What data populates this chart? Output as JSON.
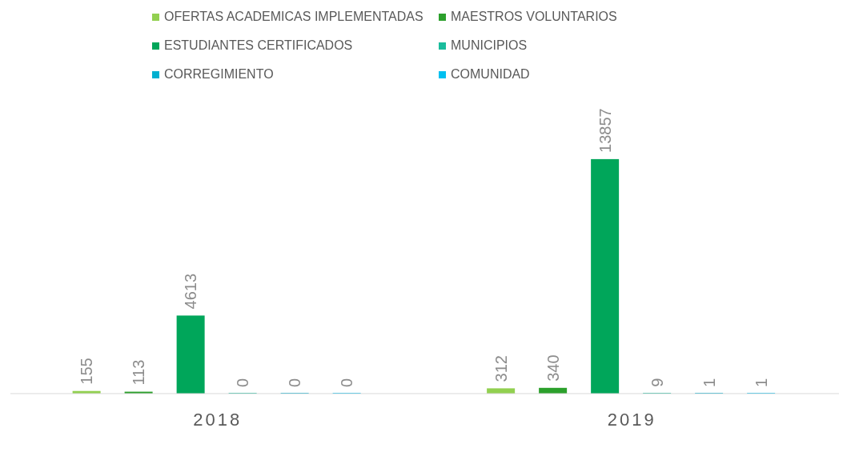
{
  "chart_data": {
    "type": "bar",
    "categories": [
      "2018",
      "2019"
    ],
    "series": [
      {
        "name": "OFERTAS ACADEMICAS IMPLEMENTADAS",
        "color": "#92d050",
        "values": [
          155,
          312
        ]
      },
      {
        "name": "MAESTROS VOLUNTARIOS",
        "color": "#2ca02c",
        "values": [
          113,
          340
        ]
      },
      {
        "name": "ESTUDIANTES CERTIFICADOS",
        "color": "#00a65a",
        "values": [
          4613,
          13857
        ]
      },
      {
        "name": "MUNICIPIOS",
        "color": "#1abc9c",
        "values": [
          0,
          9
        ]
      },
      {
        "name": "CORREGIMIENTO",
        "color": "#00b0d0",
        "values": [
          0,
          1
        ]
      },
      {
        "name": "COMUNIDAD",
        "color": "#00c0f0",
        "values": [
          0,
          1
        ]
      }
    ],
    "data_labels": true,
    "legend": "top"
  }
}
